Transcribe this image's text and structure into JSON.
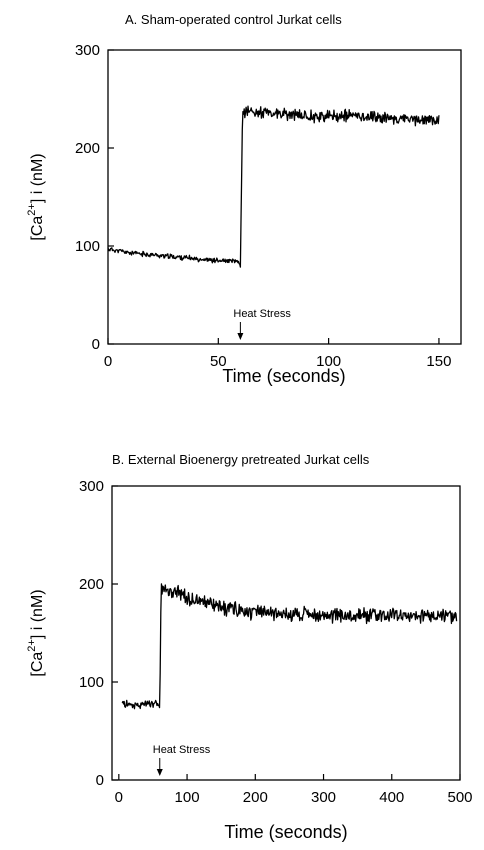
{
  "chart_data": [
    {
      "type": "line",
      "title": "A. Sham-operated control Jurkat cells",
      "xlabel": "Time  (seconds)",
      "ylabel": "[Ca2+] i  (nM)",
      "ylabel_parts": {
        "pre": "[Ca",
        "sup": "2+",
        "post": "] i  (nM)"
      },
      "xlim": [
        0,
        160
      ],
      "ylim": [
        0,
        300
      ],
      "xticks": [
        0,
        50,
        100,
        150
      ],
      "yticks": [
        0,
        100,
        200,
        300
      ],
      "grid": false,
      "annotation": {
        "text": "Heat Stress",
        "x": 60
      },
      "series": [
        {
          "x": [
            0,
            10,
            20,
            30,
            40,
            50,
            59,
            60,
            61,
            70,
            80,
            90,
            100,
            110,
            120,
            130,
            140,
            150
          ],
          "values": [
            97,
            93,
            91,
            89,
            87,
            85,
            84,
            80,
            238,
            236,
            234,
            233,
            232,
            233,
            232,
            230,
            229,
            228
          ]
        }
      ],
      "noise": {
        "pre": 2,
        "post": 5
      }
    },
    {
      "type": "line",
      "title": "B. External Bioenergy pretreated Jurkat cells",
      "xlabel": "Time  (seconds)",
      "ylabel": "[Ca2+] i  (nM)",
      "ylabel_parts": {
        "pre": "[Ca",
        "sup": "2+",
        "post": "] i  (nM)"
      },
      "xlim": [
        -10,
        500
      ],
      "ylim": [
        0,
        300
      ],
      "xticks": [
        0,
        100,
        200,
        300,
        400,
        500
      ],
      "yticks": [
        0,
        100,
        200,
        300
      ],
      "grid": false,
      "annotation": {
        "text": "Heat Stress",
        "x": 60
      },
      "series": [
        {
          "x": [
            5,
            20,
            40,
            59,
            60,
            62,
            80,
            100,
            130,
            160,
            200,
            250,
            300,
            350,
            400,
            450,
            495
          ],
          "values": [
            78,
            77,
            77,
            77,
            76,
            195,
            192,
            186,
            180,
            175,
            171,
            169,
            168,
            168,
            168,
            168,
            168
          ]
        }
      ],
      "noise": {
        "pre": 3,
        "post": 6
      }
    }
  ]
}
